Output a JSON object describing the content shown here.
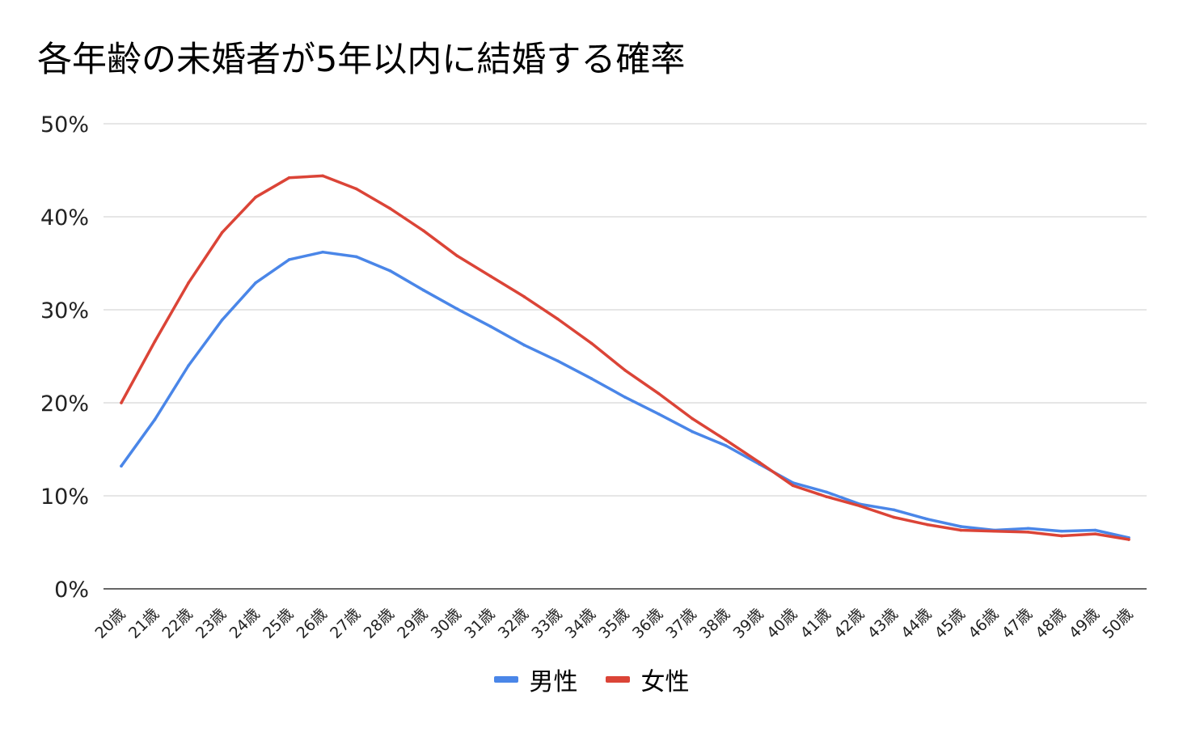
{
  "chart_data": {
    "type": "line",
    "title": "各年齢の未婚者が5年以内に結婚する確率",
    "xlabel": "",
    "ylabel": "",
    "categories": [
      "20歳",
      "21歳",
      "22歳",
      "23歳",
      "24歳",
      "25歳",
      "26歳",
      "27歳",
      "28歳",
      "29歳",
      "30歳",
      "31歳",
      "32歳",
      "33歳",
      "34歳",
      "35歳",
      "36歳",
      "37歳",
      "38歳",
      "39歳",
      "40歳",
      "41歳",
      "42歳",
      "43歳",
      "44歳",
      "45歳",
      "46歳",
      "47歳",
      "48歳",
      "49歳",
      "50歳"
    ],
    "y_ticks": [
      "0%",
      "10%",
      "20%",
      "30%",
      "40%",
      "50%"
    ],
    "ylim": [
      0,
      50
    ],
    "y_unit": "%",
    "grid": true,
    "legend_position": "bottom",
    "series": [
      {
        "name": "男性",
        "color": "#4a86e8",
        "values": [
          13.2,
          18.2,
          24.0,
          28.9,
          32.9,
          35.4,
          36.2,
          35.7,
          34.2,
          32.1,
          30.1,
          28.2,
          26.2,
          24.5,
          22.6,
          20.6,
          18.8,
          16.9,
          15.4,
          13.4,
          11.4,
          10.4,
          9.1,
          8.5,
          7.5,
          6.7,
          6.3,
          6.5,
          6.2,
          6.3,
          5.5
        ]
      },
      {
        "name": "女性",
        "color": "#db4437",
        "values": [
          20.0,
          26.6,
          32.9,
          38.3,
          42.1,
          44.2,
          44.4,
          43.0,
          40.9,
          38.5,
          35.8,
          33.6,
          31.4,
          29.0,
          26.4,
          23.5,
          21.0,
          18.3,
          16.0,
          13.6,
          11.1,
          9.9,
          8.9,
          7.7,
          6.9,
          6.3,
          6.2,
          6.1,
          5.7,
          5.9,
          5.3
        ]
      }
    ]
  }
}
